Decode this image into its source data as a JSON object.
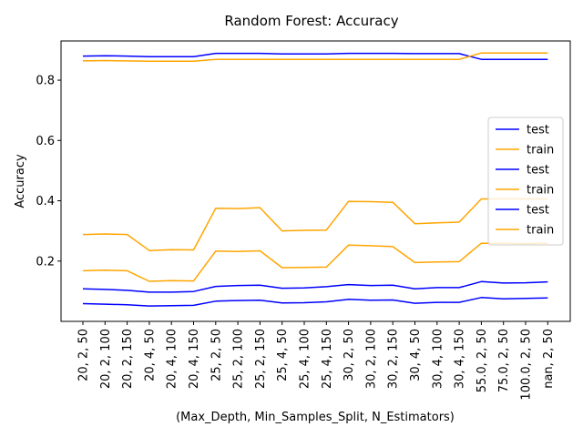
{
  "chart_data": {
    "type": "line",
    "title": "Random Forest: Accuracy",
    "xlabel": "(Max_Depth, Min_Samples_Split, N_Estimators)",
    "ylabel": "Accuracy",
    "ylim": [
      0.0,
      0.93
    ],
    "yticks": [
      0.2,
      0.4,
      0.6,
      0.8
    ],
    "ytick_labels": [
      "0.2",
      "0.4",
      "0.6",
      "0.8"
    ],
    "grid": false,
    "legend_position": "center-right",
    "categories": [
      "20, 2, 50",
      "20, 2, 100",
      "20, 2, 150",
      "20, 4, 50",
      "20, 4, 100",
      "20, 4, 150",
      "25, 2, 50",
      "25, 2, 100",
      "25, 2, 150",
      "25, 4, 50",
      "25, 4, 100",
      "25, 4, 150",
      "30, 2, 50",
      "30, 2, 100",
      "30, 2, 150",
      "30, 4, 50",
      "30, 4, 100",
      "30, 4, 150",
      "55.0, 2, 50",
      "75.0, 2, 50",
      "100.0, 2, 50",
      "nan, 2, 50"
    ],
    "series": [
      {
        "name": "test",
        "color": "#0000ff",
        "values": [
          0.88,
          0.881,
          0.88,
          0.878,
          0.878,
          0.878,
          0.889,
          0.889,
          0.889,
          0.887,
          0.887,
          0.887,
          0.889,
          0.889,
          0.889,
          0.888,
          0.888,
          0.888,
          0.869,
          0.869,
          0.869,
          0.869
        ]
      },
      {
        "name": "train",
        "color": "#ffa500",
        "values": [
          0.864,
          0.865,
          0.864,
          0.863,
          0.863,
          0.863,
          0.869,
          0.869,
          0.869,
          0.869,
          0.869,
          0.869,
          0.869,
          0.869,
          0.869,
          0.869,
          0.869,
          0.869,
          0.89,
          0.89,
          0.89,
          0.89
        ]
      },
      {
        "name": "test",
        "color": "#0000ff",
        "values": [
          0.108,
          0.106,
          0.103,
          0.097,
          0.097,
          0.099,
          0.116,
          0.119,
          0.12,
          0.11,
          0.111,
          0.115,
          0.122,
          0.119,
          0.12,
          0.108,
          0.112,
          0.112,
          0.132,
          0.127,
          0.128,
          0.131
        ]
      },
      {
        "name": "train",
        "color": "#ffa500",
        "values": [
          0.288,
          0.29,
          0.288,
          0.235,
          0.238,
          0.237,
          0.375,
          0.374,
          0.377,
          0.3,
          0.302,
          0.303,
          0.398,
          0.397,
          0.395,
          0.324,
          0.327,
          0.329,
          0.406,
          0.406,
          0.406,
          0.406
        ]
      },
      {
        "name": "test",
        "color": "#0000ff",
        "values": [
          0.059,
          0.057,
          0.055,
          0.051,
          0.052,
          0.053,
          0.067,
          0.069,
          0.07,
          0.061,
          0.062,
          0.065,
          0.073,
          0.07,
          0.071,
          0.06,
          0.063,
          0.063,
          0.079,
          0.075,
          0.076,
          0.078
        ]
      },
      {
        "name": "train",
        "color": "#ffa500",
        "values": [
          0.168,
          0.17,
          0.168,
          0.133,
          0.135,
          0.134,
          0.233,
          0.232,
          0.234,
          0.178,
          0.179,
          0.18,
          0.253,
          0.251,
          0.248,
          0.195,
          0.197,
          0.198,
          0.259,
          0.259,
          0.258,
          0.259
        ]
      }
    ]
  }
}
